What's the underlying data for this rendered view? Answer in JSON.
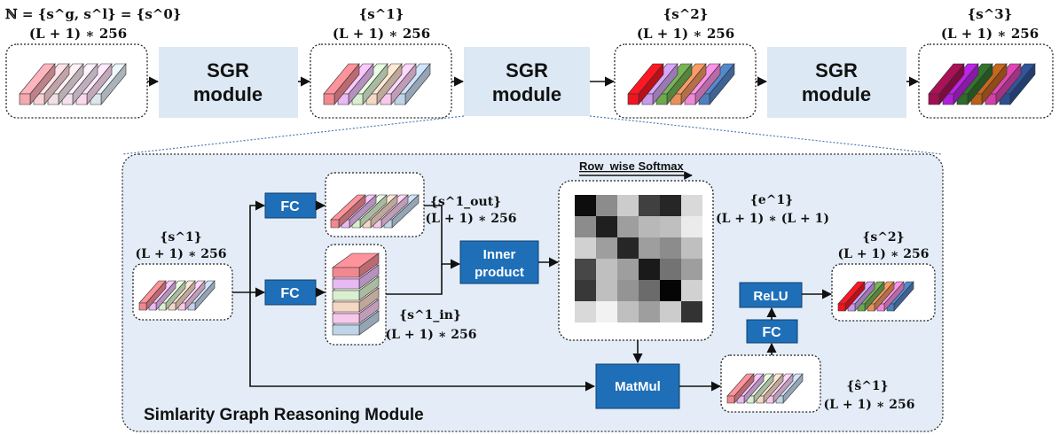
{
  "top_row": {
    "input_label": "ℕ = {s^g, s^l} = {s^0}",
    "input_dim": "(L + 1) ∗ 256",
    "s1_label": "{s^1}",
    "s1_dim": "(L + 1) ∗ 256",
    "s2_label": "{s^2}",
    "s2_dim": "(L + 1) ∗ 256",
    "s3_label": "{s^3}",
    "s3_dim": "(L + 1) ∗ 256",
    "module_line1": "SGR",
    "module_line2": "module"
  },
  "detail": {
    "title": "Simlarity Graph Reasoning Module",
    "input_label": "{s^1}",
    "input_dim": "(L + 1) ∗ 256",
    "fc_label": "FC",
    "s_out_label": "{s^1_out}",
    "s_out_dim": "(L + 1) ∗ 256",
    "s_in_label": "{s^1_in}",
    "s_in_dim": "(L + 1) ∗ 256",
    "inner_product_line1": "Inner",
    "inner_product_line2": "product",
    "softmax_label": "Row_wise Softmax",
    "e_label": "{e^1}",
    "e_dim": "(L + 1) ∗ (L + 1)",
    "matmul_label": "MatMul",
    "s_hat_label": "{ŝ^1}",
    "s_hat_dim": "(L + 1) ∗ 256",
    "relu_label": "ReLU",
    "output_label": "{s^2}",
    "output_dim": "(L + 1) ∗ 256"
  },
  "colors": {
    "module_fill": "#dce8f4",
    "button_fill": "#1f6fb8",
    "panel_fill": "#e4edf7",
    "s0_bars": [
      "#f4a8b0",
      "#f7d2d8",
      "#f0dfe4",
      "#f3e2ee",
      "#fad8ec",
      "#dde5ec"
    ],
    "s1_bars": [
      "#f08890",
      "#e9b9f4",
      "#d9efd0",
      "#f4d8c4",
      "#f8c8ea",
      "#c0d4e8"
    ],
    "s2_bars": [
      "#ee1520",
      "#c89ae8",
      "#6ea850",
      "#e8905c",
      "#f088d8",
      "#4f7fbf"
    ],
    "s3_bars": [
      "#9e1050",
      "#b020d8",
      "#2f6b2a",
      "#b8601c",
      "#d040a8",
      "#2c4f8f"
    ]
  },
  "heatmap_values": [
    [
      0.05,
      0.55,
      0.8,
      0.25,
      0.15,
      0.85
    ],
    [
      0.55,
      0.12,
      0.62,
      0.72,
      0.75,
      0.92
    ],
    [
      0.82,
      0.62,
      0.15,
      0.62,
      0.55,
      0.75
    ],
    [
      0.28,
      0.75,
      0.62,
      0.1,
      0.45,
      0.62
    ],
    [
      0.22,
      0.75,
      0.58,
      0.42,
      0.02,
      0.82
    ],
    [
      0.85,
      0.95,
      0.75,
      0.62,
      0.8,
      0.2
    ]
  ]
}
